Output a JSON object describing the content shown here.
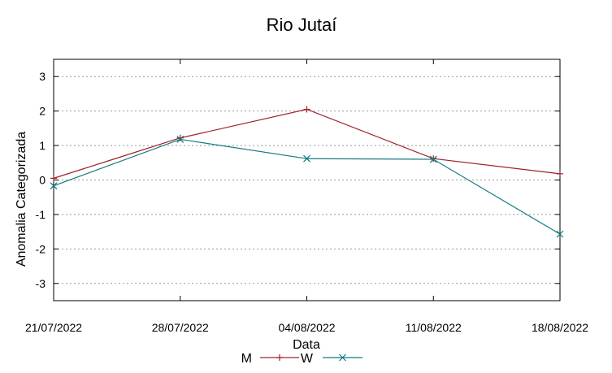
{
  "chart_data": {
    "type": "line",
    "title": "Rio Jutaí",
    "xlabel": "Data",
    "ylabel": "Anomalia Categorizada",
    "x": [
      "21/07/2022",
      "28/07/2022",
      "04/08/2022",
      "11/08/2022",
      "18/08/2022"
    ],
    "ylim": [
      -3.5,
      3.5
    ],
    "yticks": [
      "3",
      "2",
      "1",
      "0",
      "-1",
      "-2",
      "-3"
    ],
    "grid": true,
    "legend_position": "bottom-center",
    "series": [
      {
        "name": "M",
        "marker": "plus",
        "color": "#a0202a",
        "values": [
          0.05,
          1.22,
          2.05,
          0.62,
          0.18
        ]
      },
      {
        "name": "W",
        "marker": "x",
        "color": "#127a80",
        "values": [
          -0.17,
          1.18,
          0.62,
          0.6,
          -1.57
        ]
      }
    ]
  }
}
